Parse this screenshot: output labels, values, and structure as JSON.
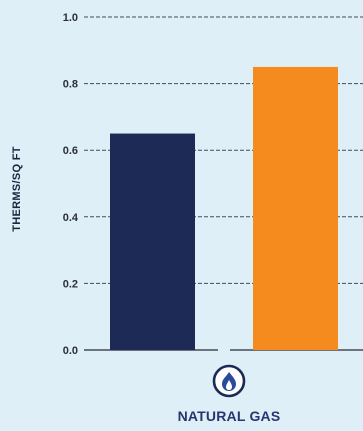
{
  "chart_data": {
    "type": "bar",
    "ylabel": "THERMS/SQ FT",
    "ylim": [
      0,
      1.0
    ],
    "yticks": [
      "0.0",
      "0.2",
      "0.4",
      "0.6",
      "0.8",
      "1.0"
    ],
    "grid": true,
    "categories": [
      "NATURAL GAS"
    ],
    "series": [
      {
        "values": [
          0.65
        ],
        "color": "#1d2a55"
      },
      {
        "values": [
          0.85
        ],
        "color": "#f58a1f"
      }
    ],
    "category_icon": "flame-icon"
  }
}
